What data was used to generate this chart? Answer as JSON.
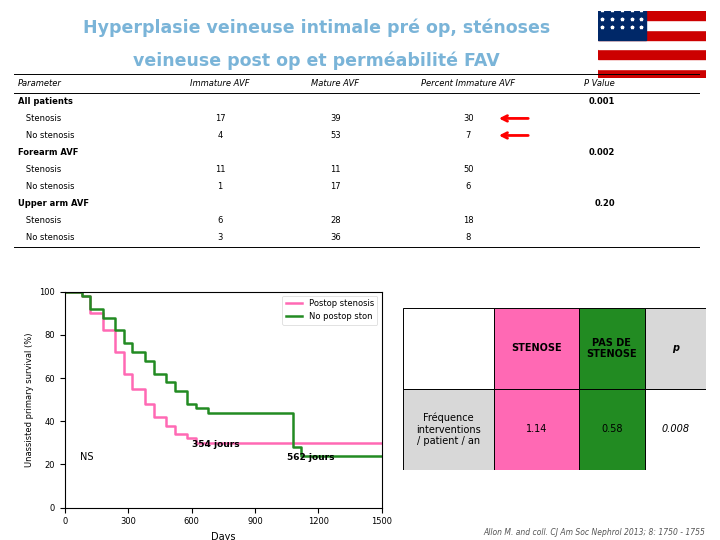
{
  "title_line1": "Hyperplasie veineuse intimale pré op, sténoses",
  "title_line2": "veineuse post op et perméabilité FAV",
  "title_color": "#7ab4d8",
  "bg_color": "#ffffff",
  "table_headers": [
    "Parameter",
    "Immature AVF",
    "Mature AVF",
    "Percent Immature AVF",
    "P Value"
  ],
  "table_rows": [
    [
      "All patients",
      "",
      "",
      "",
      "0.001"
    ],
    [
      "   Stenosis",
      "17",
      "39",
      "30",
      ""
    ],
    [
      "   No stenosis",
      "4",
      "53",
      "7",
      ""
    ],
    [
      "Forearm AVF",
      "",
      "",
      "",
      "0.002"
    ],
    [
      "   Stenosis",
      "11",
      "11",
      "50",
      ""
    ],
    [
      "   No stenosis",
      "1",
      "17",
      "6",
      ""
    ],
    [
      "Upper arm AVF",
      "",
      "",
      "",
      "0.20"
    ],
    [
      "   Stenosis",
      "6",
      "28",
      "18",
      ""
    ],
    [
      "   No stenosis",
      "3",
      "36",
      "8",
      ""
    ]
  ],
  "arrow_rows": [
    1,
    2
  ],
  "survival_curve_postop": {
    "x": [
      0,
      80,
      120,
      180,
      240,
      280,
      320,
      380,
      420,
      480,
      520,
      580,
      620,
      680,
      720,
      780,
      820,
      880,
      920,
      980,
      1020,
      1500
    ],
    "y": [
      100,
      98,
      90,
      82,
      72,
      62,
      55,
      48,
      42,
      38,
      34,
      32,
      30,
      30,
      30,
      30,
      30,
      30,
      30,
      30,
      30,
      30
    ],
    "color": "#ff69b4",
    "label": "Postop stenosis"
  },
  "survival_curve_nopostop": {
    "x": [
      0,
      80,
      120,
      180,
      240,
      280,
      320,
      380,
      420,
      480,
      520,
      580,
      620,
      680,
      720,
      780,
      820,
      880,
      920,
      980,
      1020,
      1080,
      1120,
      1180,
      1220,
      1500
    ],
    "y": [
      100,
      98,
      92,
      88,
      82,
      76,
      72,
      68,
      62,
      58,
      54,
      48,
      46,
      44,
      44,
      44,
      44,
      44,
      44,
      44,
      44,
      28,
      24,
      24,
      24,
      24
    ],
    "color": "#228B22",
    "label": "No postop ston"
  },
  "xlabel": "Days",
  "ylabel": "Unassisted primary survival (%)",
  "annotation_ns": "NS",
  "annotation_354": "354 jours",
  "annotation_562": "562 jours",
  "small_table": {
    "row_label": "Fréquence\ninterventions\n/ patient / an",
    "stenose_val": "1.14",
    "pas_stenose_val": "0.58",
    "p_val": "0.008",
    "stenose_header_color": "#ff69b4",
    "pas_stenose_header_color": "#228B22",
    "stenose_cell_color": "#ff69b4",
    "pas_stenose_cell_color": "#228B22",
    "grey_color": "#d8d8d8"
  },
  "citation": "Allon M. and coll. CJ Am Soc Nephrol 2013; 8: 1750 - 1755",
  "flag_red": "#cc0000",
  "flag_white": "#ffffff",
  "flag_blue": "#002868"
}
